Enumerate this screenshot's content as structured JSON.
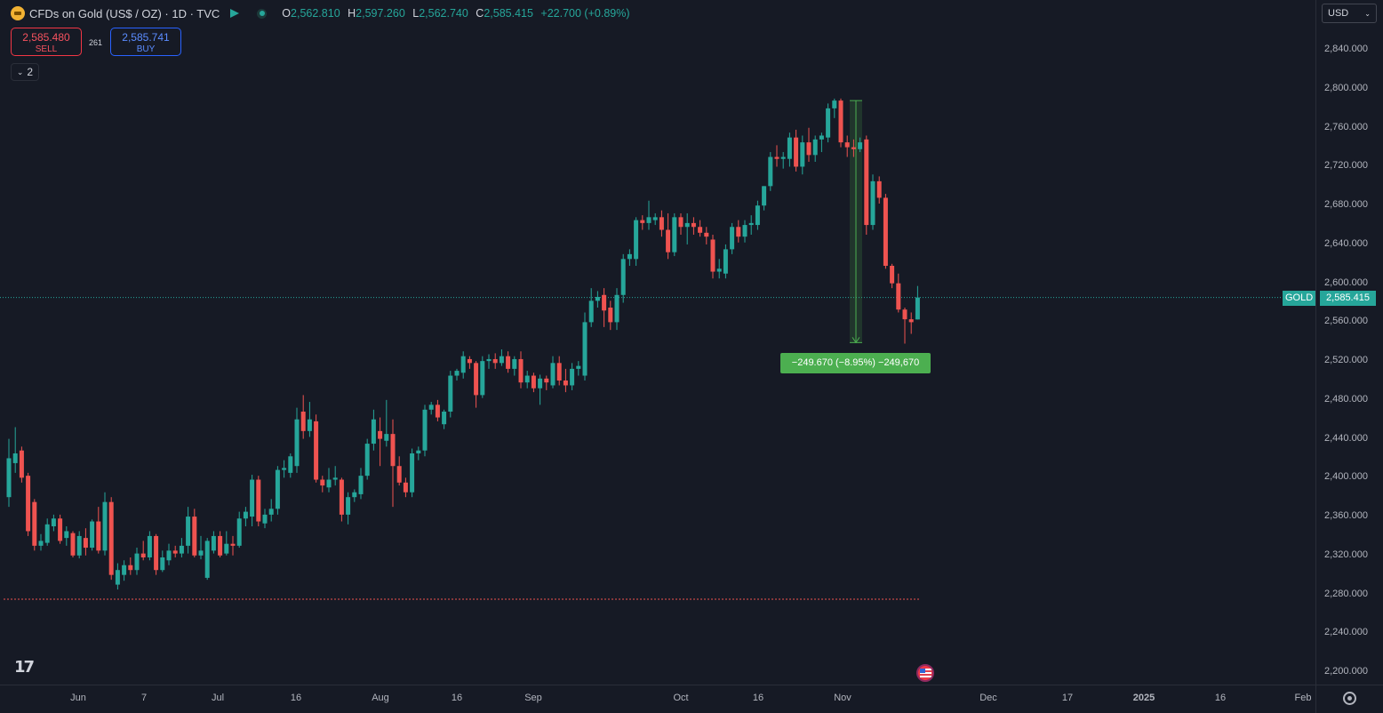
{
  "header": {
    "symbol_title": "CFDs on Gold (US$ / OZ) · 1D · TVC",
    "ohlc": {
      "o_label": "O",
      "o_value": "2,562.810",
      "h_label": "H",
      "h_value": "2,597.260",
      "l_label": "L",
      "l_value": "2,562.740",
      "c_label": "C",
      "c_value": "2,585.415",
      "change": "+22.700 (+0.89%)"
    },
    "icons": [
      "gold-coin-icon",
      "flag-icon",
      "market-status-dot-icon"
    ]
  },
  "trade": {
    "sell_price": "2,585.480",
    "sell_label": "SELL",
    "spread": "261",
    "buy_price": "2,585.741",
    "buy_label": "BUY"
  },
  "indicators_toggle": {
    "count": "2"
  },
  "price_axis": {
    "currency": "USD",
    "labels": [
      "2,840.000",
      "2,800.000",
      "2,760.000",
      "2,720.000",
      "2,680.000",
      "2,640.000",
      "2,600.000",
      "2,560.000",
      "2,520.000",
      "2,480.000",
      "2,440.000",
      "2,400.000",
      "2,360.000",
      "2,320.000",
      "2,280.000",
      "2,240.000",
      "2,200.000"
    ],
    "current_symbol": "GOLD",
    "current_price": "2,585.415"
  },
  "time_axis": {
    "labels": [
      "Jun",
      "7",
      "Jul",
      "16",
      "Aug",
      "16",
      "Sep",
      "Oct",
      "16",
      "Nov",
      "Dec",
      "17",
      "2025",
      "16",
      "Feb"
    ]
  },
  "measure": {
    "label": "−249.670 (−8.95%) −249,670"
  },
  "colors": {
    "up": "#26a69a",
    "down": "#ef5350",
    "background": "#161a25",
    "measure": "#4caf50"
  },
  "chart_data": {
    "type": "candlestick",
    "symbol": "GOLD",
    "ylim": [
      2190,
      2860
    ],
    "current_price": 2585.415,
    "support_line": 2275,
    "measure_from": 2788,
    "measure_to": 2539,
    "candles": [
      {
        "o": 2380,
        "h": 2440,
        "l": 2370,
        "c": 2420
      },
      {
        "o": 2415,
        "h": 2452,
        "l": 2405,
        "c": 2425
      },
      {
        "o": 2428,
        "h": 2432,
        "l": 2395,
        "c": 2400
      },
      {
        "o": 2402,
        "h": 2405,
        "l": 2340,
        "c": 2345
      },
      {
        "o": 2375,
        "h": 2378,
        "l": 2325,
        "c": 2330
      },
      {
        "o": 2330,
        "h": 2342,
        "l": 2325,
        "c": 2335
      },
      {
        "o": 2333,
        "h": 2358,
        "l": 2330,
        "c": 2352
      },
      {
        "o": 2350,
        "h": 2362,
        "l": 2345,
        "c": 2358
      },
      {
        "o": 2358,
        "h": 2362,
        "l": 2332,
        "c": 2335
      },
      {
        "o": 2338,
        "h": 2350,
        "l": 2330,
        "c": 2345
      },
      {
        "o": 2343,
        "h": 2345,
        "l": 2318,
        "c": 2320
      },
      {
        "o": 2320,
        "h": 2345,
        "l": 2317,
        "c": 2340
      },
      {
        "o": 2338,
        "h": 2348,
        "l": 2320,
        "c": 2328
      },
      {
        "o": 2328,
        "h": 2357,
        "l": 2325,
        "c": 2355
      },
      {
        "o": 2355,
        "h": 2370,
        "l": 2322,
        "c": 2325
      },
      {
        "o": 2325,
        "h": 2385,
        "l": 2320,
        "c": 2375
      },
      {
        "o": 2375,
        "h": 2380,
        "l": 2295,
        "c": 2300
      },
      {
        "o": 2290,
        "h": 2312,
        "l": 2285,
        "c": 2305
      },
      {
        "o": 2300,
        "h": 2315,
        "l": 2294,
        "c": 2310
      },
      {
        "o": 2310,
        "h": 2318,
        "l": 2300,
        "c": 2305
      },
      {
        "o": 2305,
        "h": 2328,
        "l": 2300,
        "c": 2322
      },
      {
        "o": 2322,
        "h": 2335,
        "l": 2315,
        "c": 2318
      },
      {
        "o": 2318,
        "h": 2345,
        "l": 2315,
        "c": 2340
      },
      {
        "o": 2340,
        "h": 2342,
        "l": 2300,
        "c": 2305
      },
      {
        "o": 2305,
        "h": 2325,
        "l": 2303,
        "c": 2318
      },
      {
        "o": 2315,
        "h": 2332,
        "l": 2310,
        "c": 2325
      },
      {
        "o": 2325,
        "h": 2330,
        "l": 2318,
        "c": 2322
      },
      {
        "o": 2322,
        "h": 2338,
        "l": 2318,
        "c": 2330
      },
      {
        "o": 2330,
        "h": 2370,
        "l": 2322,
        "c": 2360
      },
      {
        "o": 2360,
        "h": 2368,
        "l": 2318,
        "c": 2320
      },
      {
        "o": 2320,
        "h": 2340,
        "l": 2316,
        "c": 2325
      },
      {
        "o": 2297,
        "h": 2338,
        "l": 2295,
        "c": 2335
      },
      {
        "o": 2325,
        "h": 2345,
        "l": 2322,
        "c": 2340
      },
      {
        "o": 2340,
        "h": 2345,
        "l": 2318,
        "c": 2320
      },
      {
        "o": 2322,
        "h": 2345,
        "l": 2320,
        "c": 2332
      },
      {
        "o": 2332,
        "h": 2340,
        "l": 2320,
        "c": 2330
      },
      {
        "o": 2330,
        "h": 2365,
        "l": 2328,
        "c": 2358
      },
      {
        "o": 2358,
        "h": 2370,
        "l": 2350,
        "c": 2365
      },
      {
        "o": 2360,
        "h": 2403,
        "l": 2350,
        "c": 2398
      },
      {
        "o": 2398,
        "h": 2402,
        "l": 2350,
        "c": 2355
      },
      {
        "o": 2353,
        "h": 2368,
        "l": 2348,
        "c": 2362
      },
      {
        "o": 2362,
        "h": 2378,
        "l": 2355,
        "c": 2368
      },
      {
        "o": 2368,
        "h": 2412,
        "l": 2362,
        "c": 2408
      },
      {
        "o": 2408,
        "h": 2418,
        "l": 2400,
        "c": 2410
      },
      {
        "o": 2405,
        "h": 2425,
        "l": 2400,
        "c": 2422
      },
      {
        "o": 2412,
        "h": 2472,
        "l": 2405,
        "c": 2460
      },
      {
        "o": 2468,
        "h": 2485,
        "l": 2440,
        "c": 2448
      },
      {
        "o": 2448,
        "h": 2478,
        "l": 2442,
        "c": 2460
      },
      {
        "o": 2458,
        "h": 2465,
        "l": 2395,
        "c": 2398
      },
      {
        "o": 2398,
        "h": 2402,
        "l": 2385,
        "c": 2392
      },
      {
        "o": 2390,
        "h": 2410,
        "l": 2385,
        "c": 2398
      },
      {
        "o": 2398,
        "h": 2412,
        "l": 2392,
        "c": 2400
      },
      {
        "o": 2398,
        "h": 2400,
        "l": 2355,
        "c": 2362
      },
      {
        "o": 2362,
        "h": 2385,
        "l": 2352,
        "c": 2380
      },
      {
        "o": 2380,
        "h": 2388,
        "l": 2375,
        "c": 2385
      },
      {
        "o": 2383,
        "h": 2410,
        "l": 2378,
        "c": 2402
      },
      {
        "o": 2402,
        "h": 2440,
        "l": 2398,
        "c": 2435
      },
      {
        "o": 2435,
        "h": 2470,
        "l": 2428,
        "c": 2460
      },
      {
        "o": 2448,
        "h": 2462,
        "l": 2412,
        "c": 2440
      },
      {
        "o": 2438,
        "h": 2480,
        "l": 2432,
        "c": 2445
      },
      {
        "o": 2445,
        "h": 2460,
        "l": 2370,
        "c": 2412
      },
      {
        "o": 2412,
        "h": 2422,
        "l": 2392,
        "c": 2395
      },
      {
        "o": 2395,
        "h": 2400,
        "l": 2380,
        "c": 2385
      },
      {
        "o": 2385,
        "h": 2430,
        "l": 2380,
        "c": 2425
      },
      {
        "o": 2425,
        "h": 2432,
        "l": 2418,
        "c": 2428
      },
      {
        "o": 2428,
        "h": 2475,
        "l": 2422,
        "c": 2470
      },
      {
        "o": 2470,
        "h": 2478,
        "l": 2465,
        "c": 2475
      },
      {
        "o": 2475,
        "h": 2480,
        "l": 2458,
        "c": 2462
      },
      {
        "o": 2455,
        "h": 2470,
        "l": 2450,
        "c": 2468
      },
      {
        "o": 2468,
        "h": 2510,
        "l": 2462,
        "c": 2505
      },
      {
        "o": 2505,
        "h": 2512,
        "l": 2500,
        "c": 2510
      },
      {
        "o": 2508,
        "h": 2530,
        "l": 2502,
        "c": 2525
      },
      {
        "o": 2522,
        "h": 2525,
        "l": 2512,
        "c": 2518
      },
      {
        "o": 2518,
        "h": 2520,
        "l": 2472,
        "c": 2485
      },
      {
        "o": 2485,
        "h": 2525,
        "l": 2482,
        "c": 2520
      },
      {
        "o": 2520,
        "h": 2527,
        "l": 2512,
        "c": 2522
      },
      {
        "o": 2522,
        "h": 2528,
        "l": 2512,
        "c": 2518
      },
      {
        "o": 2518,
        "h": 2532,
        "l": 2515,
        "c": 2525
      },
      {
        "o": 2525,
        "h": 2530,
        "l": 2508,
        "c": 2512
      },
      {
        "o": 2512,
        "h": 2525,
        "l": 2505,
        "c": 2522
      },
      {
        "o": 2522,
        "h": 2530,
        "l": 2492,
        "c": 2498
      },
      {
        "o": 2498,
        "h": 2510,
        "l": 2492,
        "c": 2505
      },
      {
        "o": 2505,
        "h": 2508,
        "l": 2488,
        "c": 2492
      },
      {
        "o": 2492,
        "h": 2506,
        "l": 2475,
        "c": 2502
      },
      {
        "o": 2502,
        "h": 2505,
        "l": 2490,
        "c": 2498
      },
      {
        "o": 2495,
        "h": 2525,
        "l": 2492,
        "c": 2518
      },
      {
        "o": 2518,
        "h": 2525,
        "l": 2495,
        "c": 2500
      },
      {
        "o": 2500,
        "h": 2512,
        "l": 2488,
        "c": 2495
      },
      {
        "o": 2495,
        "h": 2518,
        "l": 2490,
        "c": 2512
      },
      {
        "o": 2512,
        "h": 2520,
        "l": 2505,
        "c": 2515
      },
      {
        "o": 2505,
        "h": 2570,
        "l": 2500,
        "c": 2560
      },
      {
        "o": 2560,
        "h": 2595,
        "l": 2555,
        "c": 2582
      },
      {
        "o": 2582,
        "h": 2592,
        "l": 2575,
        "c": 2586
      },
      {
        "o": 2588,
        "h": 2595,
        "l": 2555,
        "c": 2572
      },
      {
        "o": 2575,
        "h": 2582,
        "l": 2552,
        "c": 2560
      },
      {
        "o": 2560,
        "h": 2595,
        "l": 2552,
        "c": 2588
      },
      {
        "o": 2588,
        "h": 2630,
        "l": 2580,
        "c": 2625
      },
      {
        "o": 2625,
        "h": 2635,
        "l": 2618,
        "c": 2630
      },
      {
        "o": 2625,
        "h": 2668,
        "l": 2618,
        "c": 2665
      },
      {
        "o": 2665,
        "h": 2670,
        "l": 2655,
        "c": 2662
      },
      {
        "o": 2662,
        "h": 2685,
        "l": 2655,
        "c": 2668
      },
      {
        "o": 2665,
        "h": 2672,
        "l": 2660,
        "c": 2668
      },
      {
        "o": 2668,
        "h": 2675,
        "l": 2648,
        "c": 2655
      },
      {
        "o": 2655,
        "h": 2672,
        "l": 2625,
        "c": 2632
      },
      {
        "o": 2632,
        "h": 2672,
        "l": 2628,
        "c": 2668
      },
      {
        "o": 2668,
        "h": 2672,
        "l": 2650,
        "c": 2658
      },
      {
        "o": 2658,
        "h": 2672,
        "l": 2640,
        "c": 2662
      },
      {
        "o": 2662,
        "h": 2668,
        "l": 2650,
        "c": 2658
      },
      {
        "o": 2658,
        "h": 2665,
        "l": 2648,
        "c": 2652
      },
      {
        "o": 2652,
        "h": 2658,
        "l": 2640,
        "c": 2648
      },
      {
        "o": 2645,
        "h": 2650,
        "l": 2605,
        "c": 2612
      },
      {
        "o": 2612,
        "h": 2625,
        "l": 2605,
        "c": 2615
      },
      {
        "o": 2610,
        "h": 2640,
        "l": 2605,
        "c": 2635
      },
      {
        "o": 2635,
        "h": 2662,
        "l": 2630,
        "c": 2658
      },
      {
        "o": 2658,
        "h": 2665,
        "l": 2642,
        "c": 2648
      },
      {
        "o": 2648,
        "h": 2665,
        "l": 2642,
        "c": 2660
      },
      {
        "o": 2660,
        "h": 2670,
        "l": 2650,
        "c": 2662
      },
      {
        "o": 2660,
        "h": 2685,
        "l": 2655,
        "c": 2680
      },
      {
        "o": 2680,
        "h": 2700,
        "l": 2675,
        "c": 2700
      },
      {
        "o": 2700,
        "h": 2735,
        "l": 2695,
        "c": 2730
      },
      {
        "o": 2730,
        "h": 2742,
        "l": 2720,
        "c": 2728
      },
      {
        "o": 2728,
        "h": 2735,
        "l": 2718,
        "c": 2730
      },
      {
        "o": 2728,
        "h": 2755,
        "l": 2720,
        "c": 2750
      },
      {
        "o": 2750,
        "h": 2758,
        "l": 2715,
        "c": 2720
      },
      {
        "o": 2720,
        "h": 2752,
        "l": 2712,
        "c": 2745
      },
      {
        "o": 2745,
        "h": 2760,
        "l": 2725,
        "c": 2732
      },
      {
        "o": 2732,
        "h": 2752,
        "l": 2725,
        "c": 2748
      },
      {
        "o": 2748,
        "h": 2755,
        "l": 2735,
        "c": 2752
      },
      {
        "o": 2750,
        "h": 2785,
        "l": 2745,
        "c": 2780
      },
      {
        "o": 2780,
        "h": 2790,
        "l": 2770,
        "c": 2788
      },
      {
        "o": 2788,
        "h": 2790,
        "l": 2740,
        "c": 2745
      },
      {
        "o": 2745,
        "h": 2752,
        "l": 2730,
        "c": 2740
      },
      {
        "o": 2740,
        "h": 2748,
        "l": 2730,
        "c": 2738
      },
      {
        "o": 2738,
        "h": 2750,
        "l": 2735,
        "c": 2745
      },
      {
        "o": 2748,
        "h": 2752,
        "l": 2650,
        "c": 2660
      },
      {
        "o": 2660,
        "h": 2712,
        "l": 2655,
        "c": 2705
      },
      {
        "o": 2705,
        "h": 2710,
        "l": 2682,
        "c": 2688
      },
      {
        "o": 2688,
        "h": 2692,
        "l": 2615,
        "c": 2618
      },
      {
        "o": 2618,
        "h": 2620,
        "l": 2595,
        "c": 2600
      },
      {
        "o": 2600,
        "h": 2610,
        "l": 2570,
        "c": 2573
      },
      {
        "o": 2573,
        "h": 2575,
        "l": 2538,
        "c": 2563
      },
      {
        "o": 2563,
        "h": 2570,
        "l": 2548,
        "c": 2560
      },
      {
        "o": 2562.81,
        "h": 2597.26,
        "l": 2562.74,
        "c": 2585.415
      }
    ]
  }
}
